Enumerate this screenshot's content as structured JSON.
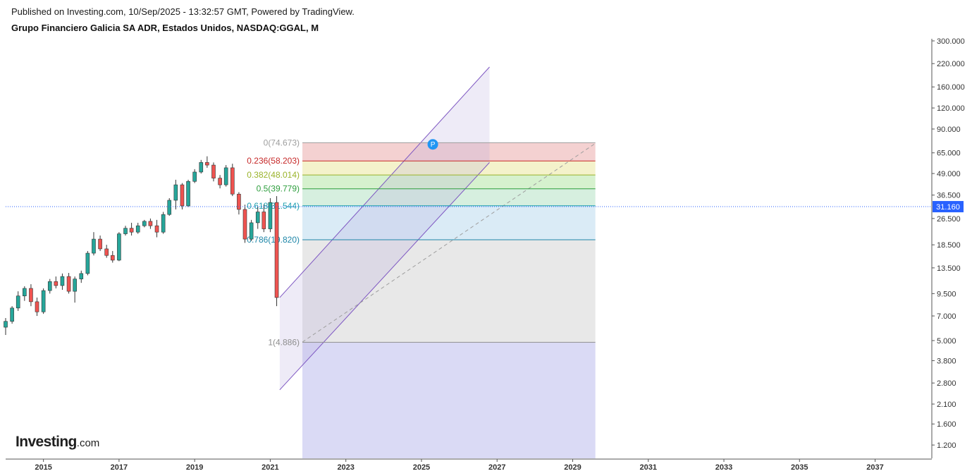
{
  "header": {
    "published": "Published on Investing.com, 10/Sep/2025 - 13:32:57 GMT, Powered by TradingView.",
    "symbol": "Grupo Financiero Galicia SA ADR, Estados Unidos, NASDAQ:GGAL, M"
  },
  "logo": {
    "brand": "Investing",
    "suffix": ".com"
  },
  "chart_data": {
    "type": "candlestick",
    "scale": "log",
    "x_axis": {
      "ticks": [
        "2015",
        "2017",
        "2019",
        "2021",
        "2023",
        "2025",
        "2027",
        "2029",
        "2031",
        "2033",
        "2035",
        "2037"
      ],
      "range": [
        2014.0,
        2038.5
      ]
    },
    "y_axis": {
      "ticks": [
        "300.000",
        "220.000",
        "160.000",
        "120.000",
        "90.000",
        "65.000",
        "49.000",
        "36.500",
        "26.500",
        "18.500",
        "13.500",
        "9.500",
        "7.000",
        "5.000",
        "3.800",
        "2.800",
        "2.100",
        "1.600",
        "1.200"
      ],
      "range": [
        1.0,
        300.0
      ]
    },
    "last_price": {
      "label": "31.160",
      "value": 31.16,
      "color": "#2962ff"
    },
    "colors": {
      "up": "#26a69a",
      "down": "#ef5350"
    },
    "fibonacci": {
      "levels": [
        {
          "ratio": "0",
          "price": "74.673",
          "label": "0(74.673)",
          "value": 74.673,
          "color": "#9e9e9e",
          "fill": "#f2c9c9"
        },
        {
          "ratio": "0.236",
          "price": "58.203",
          "label": "0.236(58.203)",
          "value": 58.203,
          "color": "#c62828",
          "fill": "#f2f0c2"
        },
        {
          "ratio": "0.382",
          "price": "48.014",
          "label": "0.382(48.014)",
          "value": 48.014,
          "color": "#9ab32a",
          "fill": "#cfeec5"
        },
        {
          "ratio": "0.5",
          "price": "39.779",
          "label": "0.5(39.779)",
          "value": 39.779,
          "color": "#2e9e3e",
          "fill": "#cfecd9"
        },
        {
          "ratio": "0.618",
          "price": "31.544",
          "label": "0.618(31.544)",
          "value": 31.544,
          "color": "#1e9fae",
          "fill": "#d3e8f4"
        },
        {
          "ratio": "0.786",
          "price": "19.820",
          "label": "0.786(19.820)",
          "value": 19.82,
          "color": "#1e86a8",
          "fill": "#e4e4e4"
        },
        {
          "ratio": "1",
          "price": "4.886",
          "label": "1(4.886)",
          "value": 4.886,
          "color": "#8e8e8e",
          "fill": "#d4d4f3"
        }
      ],
      "x_start": 2021.85,
      "x_end": 2029.6,
      "bottom_value": 1.0
    },
    "channel": {
      "upper": [
        [
          2021.25,
          9.0
        ],
        [
          2026.8,
          210.0
        ]
      ],
      "lower": [
        [
          2021.25,
          2.55
        ],
        [
          2026.8,
          57.0
        ]
      ],
      "midline": [
        [
          2021.85,
          4.9
        ],
        [
          2029.6,
          74.0
        ]
      ],
      "shade_x": [
        2021.25,
        2026.8
      ]
    },
    "marker": {
      "label": "P",
      "x": 2025.3,
      "value": 73.0,
      "color": "#2196f3"
    },
    "candles": [
      {
        "t": 2014.0,
        "o": 6.0,
        "h": 6.8,
        "l": 5.4,
        "c": 6.5
      },
      {
        "t": 2014.17,
        "o": 6.5,
        "h": 8.0,
        "l": 6.3,
        "c": 7.8
      },
      {
        "t": 2014.33,
        "o": 7.8,
        "h": 9.8,
        "l": 7.5,
        "c": 9.2
      },
      {
        "t": 2014.5,
        "o": 9.2,
        "h": 10.5,
        "l": 8.6,
        "c": 10.2
      },
      {
        "t": 2014.67,
        "o": 10.2,
        "h": 10.8,
        "l": 8.0,
        "c": 8.5
      },
      {
        "t": 2014.83,
        "o": 8.5,
        "h": 9.0,
        "l": 7.0,
        "c": 7.4
      },
      {
        "t": 2015.0,
        "o": 7.4,
        "h": 10.2,
        "l": 7.2,
        "c": 9.9
      },
      {
        "t": 2015.17,
        "o": 9.9,
        "h": 11.6,
        "l": 9.5,
        "c": 11.2
      },
      {
        "t": 2015.33,
        "o": 11.2,
        "h": 12.0,
        "l": 10.2,
        "c": 10.6
      },
      {
        "t": 2015.5,
        "o": 10.6,
        "h": 12.5,
        "l": 10.0,
        "c": 12.0
      },
      {
        "t": 2015.67,
        "o": 12.0,
        "h": 12.6,
        "l": 9.5,
        "c": 9.8
      },
      {
        "t": 2015.83,
        "o": 9.8,
        "h": 12.0,
        "l": 8.4,
        "c": 11.6
      },
      {
        "t": 2016.0,
        "o": 11.6,
        "h": 13.0,
        "l": 11.0,
        "c": 12.5
      },
      {
        "t": 2016.17,
        "o": 12.5,
        "h": 17.0,
        "l": 12.2,
        "c": 16.5
      },
      {
        "t": 2016.33,
        "o": 16.5,
        "h": 22.0,
        "l": 16.0,
        "c": 20.0
      },
      {
        "t": 2016.5,
        "o": 20.0,
        "h": 21.0,
        "l": 17.0,
        "c": 17.5
      },
      {
        "t": 2016.67,
        "o": 17.5,
        "h": 18.5,
        "l": 15.5,
        "c": 16.0
      },
      {
        "t": 2016.83,
        "o": 16.0,
        "h": 17.0,
        "l": 14.5,
        "c": 15.0
      },
      {
        "t": 2017.0,
        "o": 15.0,
        "h": 22.0,
        "l": 14.8,
        "c": 21.5
      },
      {
        "t": 2017.17,
        "o": 21.5,
        "h": 24.0,
        "l": 21.0,
        "c": 23.2
      },
      {
        "t": 2017.33,
        "o": 23.2,
        "h": 25.0,
        "l": 21.0,
        "c": 22.0
      },
      {
        "t": 2017.5,
        "o": 22.0,
        "h": 25.0,
        "l": 21.5,
        "c": 24.0
      },
      {
        "t": 2017.67,
        "o": 24.0,
        "h": 26.0,
        "l": 23.5,
        "c": 25.5
      },
      {
        "t": 2017.83,
        "o": 25.5,
        "h": 26.5,
        "l": 23.0,
        "c": 24.0
      },
      {
        "t": 2018.0,
        "o": 24.0,
        "h": 26.0,
        "l": 20.5,
        "c": 22.0
      },
      {
        "t": 2018.17,
        "o": 22.0,
        "h": 29.0,
        "l": 21.5,
        "c": 28.0
      },
      {
        "t": 2018.33,
        "o": 28.0,
        "h": 35.0,
        "l": 27.5,
        "c": 34.0
      },
      {
        "t": 2018.5,
        "o": 34.0,
        "h": 45.0,
        "l": 30.0,
        "c": 42.0
      },
      {
        "t": 2018.67,
        "o": 42.0,
        "h": 43.0,
        "l": 30.0,
        "c": 31.5
      },
      {
        "t": 2018.83,
        "o": 31.5,
        "h": 45.0,
        "l": 31.0,
        "c": 44.0
      },
      {
        "t": 2019.0,
        "o": 44.0,
        "h": 52.0,
        "l": 43.0,
        "c": 50.0
      },
      {
        "t": 2019.17,
        "o": 50.0,
        "h": 59.0,
        "l": 49.0,
        "c": 57.0
      },
      {
        "t": 2019.33,
        "o": 57.0,
        "h": 62.0,
        "l": 53.0,
        "c": 55.0
      },
      {
        "t": 2019.5,
        "o": 55.0,
        "h": 57.0,
        "l": 44.0,
        "c": 46.0
      },
      {
        "t": 2019.67,
        "o": 46.0,
        "h": 48.0,
        "l": 40.0,
        "c": 42.0
      },
      {
        "t": 2019.83,
        "o": 42.0,
        "h": 55.0,
        "l": 41.0,
        "c": 53.0
      },
      {
        "t": 2020.0,
        "o": 53.0,
        "h": 56.0,
        "l": 36.0,
        "c": 37.0
      },
      {
        "t": 2020.17,
        "o": 37.0,
        "h": 38.0,
        "l": 28.0,
        "c": 30.0
      },
      {
        "t": 2020.33,
        "o": 30.0,
        "h": 32.0,
        "l": 19.0,
        "c": 20.0
      },
      {
        "t": 2020.5,
        "o": 20.0,
        "h": 26.0,
        "l": 19.5,
        "c": 25.0
      },
      {
        "t": 2020.67,
        "o": 25.0,
        "h": 31.0,
        "l": 23.0,
        "c": 29.0
      },
      {
        "t": 2020.83,
        "o": 29.0,
        "h": 32.0,
        "l": 22.0,
        "c": 23.0
      },
      {
        "t": 2021.0,
        "o": 23.0,
        "h": 35.0,
        "l": 22.0,
        "c": 33.0
      },
      {
        "t": 2021.17,
        "o": 33.0,
        "h": 36.0,
        "l": 8.0,
        "c": 9.0
      }
    ]
  }
}
